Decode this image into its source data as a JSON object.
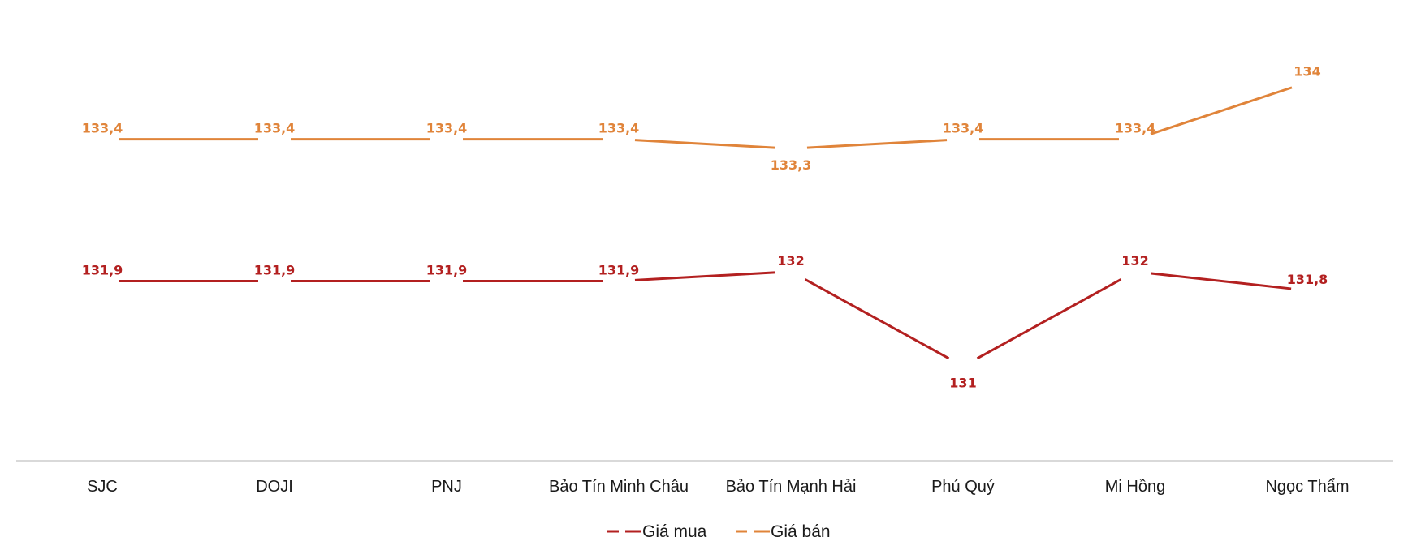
{
  "chart_data": {
    "type": "line",
    "title": "",
    "xlabel": "",
    "ylabel": "",
    "categories": [
      "SJC",
      "DOJI",
      "PNJ",
      "Bảo Tín Minh Châu",
      "Bảo Tín Mạnh Hải",
      "Phú Quý",
      "Mi Hồng",
      "Ngọc Thẩm"
    ],
    "series": [
      {
        "name": "Giá mua",
        "color": "#b32020",
        "values": [
          131.9,
          131.9,
          131.9,
          131.9,
          132,
          131,
          132,
          131.8
        ],
        "labels": [
          "131,9",
          "131,9",
          "131,9",
          "131,9",
          "132",
          "131",
          "132",
          "131,8"
        ]
      },
      {
        "name": "Giá bán",
        "color": "#e0843a",
        "values": [
          133.4,
          133.4,
          133.4,
          133.4,
          133.3,
          133.4,
          133.4,
          134
        ],
        "labels": [
          "133,4",
          "133,4",
          "133,4",
          "133,4",
          "133,3",
          "133,4",
          "133,4",
          "134"
        ]
      }
    ],
    "ylim": [
      130,
      134.7
    ],
    "grid": false,
    "legend": "bottom-center",
    "axis_color": "#d9d9d9"
  }
}
